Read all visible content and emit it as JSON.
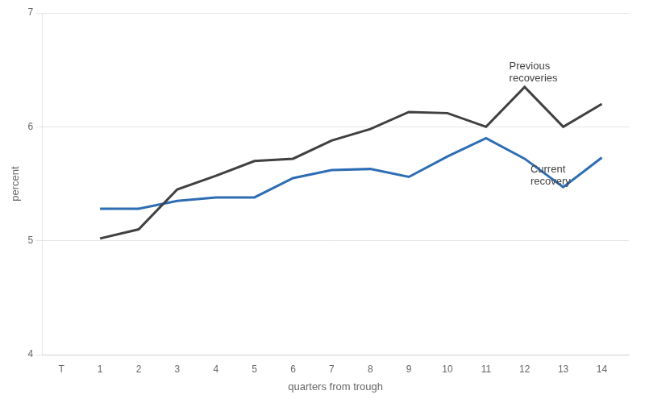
{
  "chart_data": {
    "type": "line",
    "xlabel": "quarters from trough",
    "ylabel": "percent",
    "x": [
      0,
      1,
      2,
      3,
      4,
      5,
      6,
      7,
      8,
      9,
      10,
      11,
      12,
      13,
      14
    ],
    "series": [
      {
        "color": "#404040",
        "values": [
          null,
          5.02,
          5.1,
          5.45,
          5.57,
          5.7,
          5.72,
          5.88,
          5.98,
          6.13,
          6.12,
          6.0,
          6.35,
          6.0,
          6.2
        ]
      },
      {
        "color": "#2e6db4",
        "values": [
          null,
          5.28,
          5.28,
          5.35,
          5.38,
          5.38,
          5.55,
          5.62,
          5.63,
          5.56,
          5.74,
          5.9,
          5.72,
          5.47,
          5.73
        ]
      }
    ],
    "annotations": [
      {
        "text": "Previous\nrecoveries",
        "x": 11.6,
        "y": 6.48,
        "color": "#404040"
      },
      {
        "text": "Current\nrecovery",
        "x": 12.15,
        "y": 5.57,
        "color": "#404040"
      }
    ],
    "xlim": [
      -0.5,
      14.7
    ],
    "xticks": [
      {
        "value": 0,
        "label": "T"
      },
      1,
      2,
      3,
      4,
      5,
      6,
      7,
      8,
      9,
      10,
      11,
      12,
      13,
      14
    ],
    "ylim": [
      4,
      7
    ],
    "yticks": [
      4,
      5,
      6,
      7
    ],
    "grid": "y"
  }
}
